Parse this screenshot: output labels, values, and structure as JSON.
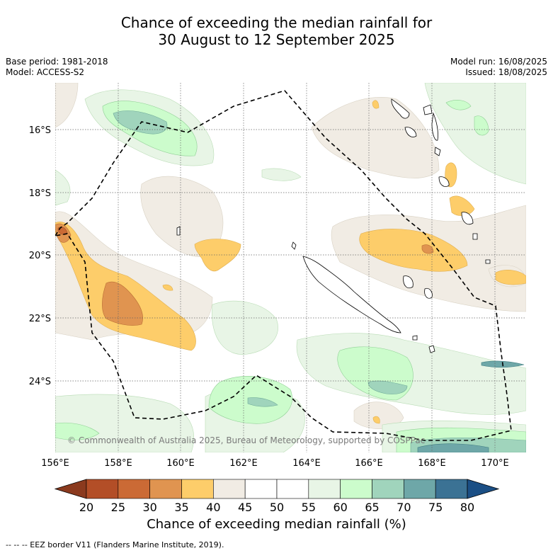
{
  "title": {
    "line1": "Chance of exceeding the median rainfall for",
    "line2": "30 August to 12 September 2025"
  },
  "meta": {
    "base_period": "Base period: 1981-2018",
    "model": "Model: ACCESS-S2",
    "model_run": "Model run: 16/08/2025",
    "issued": "Issued: 18/08/2025"
  },
  "map": {
    "copyright": "© Commonwealth of Australia 2025, Bureau of Meteorology, supported by COSPPac",
    "lat_labels": [
      "16°S",
      "18°S",
      "20°S",
      "22°S",
      "24°S"
    ],
    "lon_labels": [
      "156°E",
      "158°E",
      "160°E",
      "162°E",
      "164°E",
      "166°E",
      "168°E",
      "170°E"
    ],
    "lat_values": [
      -16,
      -18,
      -20,
      -22,
      -24
    ],
    "lon_values": [
      156,
      158,
      160,
      162,
      164,
      166,
      168,
      170
    ]
  },
  "colorbar": {
    "ticks": [
      "20",
      "25",
      "30",
      "35",
      "40",
      "45",
      "50",
      "55",
      "60",
      "65",
      "70",
      "75",
      "80"
    ],
    "colors": [
      "#8b3a1e",
      "#b34e27",
      "#cb6a35",
      "#e09450",
      "#fdcd6a",
      "#f1ece4",
      "#ffffff",
      "#ffffff",
      "#e8f5e6",
      "#ccfccc",
      "#a0d4bc",
      "#6ea7a8",
      "#3b7294",
      "#1b4f85"
    ],
    "label": "Chance of exceeding median rainfall (%)"
  },
  "footnote": "--  --  -- EEZ border V11 (Flanders Marine Institute, 2019)."
}
